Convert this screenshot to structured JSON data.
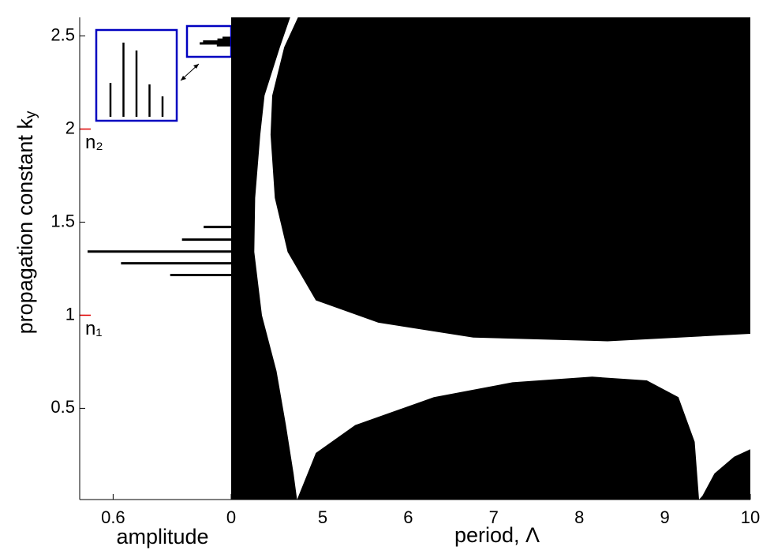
{
  "chart_data": [
    {
      "type": "bar",
      "orientation": "horizontal",
      "x_label": "amplitude",
      "y_label": {
        "text": "propagation constant k",
        "subscript": "y"
      },
      "ky": [
        1.216,
        1.279,
        1.342,
        1.406,
        1.474,
        2.45,
        2.46,
        2.47,
        2.48,
        2.49
      ],
      "amplitude": [
        0.31,
        0.56,
        0.73,
        0.25,
        0.14,
        0.073,
        0.16,
        0.143,
        0.07,
        0.044
      ],
      "color": "#000000",
      "xlim": [
        0.77,
        0
      ],
      "ylim": [
        0.01,
        2.6
      ],
      "xticks": [
        0.6,
        0
      ],
      "yticks": [
        0.5,
        1,
        1.5,
        2,
        2.5
      ],
      "annotations": [
        {
          "text": "n₁",
          "y": 1,
          "color": "#e00000"
        },
        {
          "text": "n₂",
          "y": 2,
          "color": "#e00000"
        }
      ],
      "inset_color": "#0000c0"
    },
    {
      "type": "region",
      "x_label": "period, Λ",
      "xlim": [
        3.93,
        10
      ],
      "ylim": [
        0.01,
        2.6
      ],
      "xticks": [
        5,
        6,
        7,
        8,
        9,
        10
      ],
      "background": "#000000",
      "regions": [
        {
          "color": "#ffffff",
          "x": [
            4.62,
            4.71,
            4.55,
            4.41,
            4.39,
            4.44,
            4.59,
            4.92,
            5.65,
            6.76,
            8.33,
            10,
            10,
            9.81,
            9.58,
            9.44,
            9.4,
            9.35,
            9.16,
            8.79,
            8.15,
            7.22,
            6.3,
            5.38,
            4.92,
            4.7,
            4.66,
            4.57,
            4.46,
            4.29,
            4.2,
            4.21,
            4.27,
            4.32,
            4.5
          ],
          "y": [
            2.6,
            2.6,
            2.44,
            2.18,
            1.97,
            1.63,
            1.34,
            1.08,
            0.96,
            0.88,
            0.86,
            0.9,
            0.28,
            0.24,
            0.15,
            0.03,
            0.01,
            0.32,
            0.56,
            0.65,
            0.67,
            0.64,
            0.56,
            0.41,
            0.26,
            0.01,
            0.15,
            0.41,
            0.7,
            1.0,
            1.34,
            1.63,
            1.97,
            2.18,
            2.44
          ]
        }
      ]
    }
  ]
}
